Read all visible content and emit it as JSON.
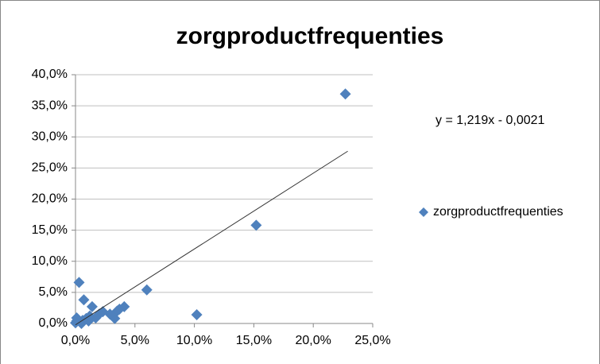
{
  "chart_data": {
    "type": "scatter",
    "title": "zorgproductfrequenties",
    "series": [
      {
        "name": "zorgproductfrequenties",
        "color": "#4f81bd",
        "x": [
          22.7,
          15.2,
          10.2,
          6.0,
          0.3,
          0.7,
          1.4,
          4.1,
          3.5,
          3.3,
          2.3,
          2.0,
          1.2,
          0.9,
          0.6,
          0.3,
          0.0,
          0.1,
          0.1,
          0.5,
          1.1,
          1.7,
          2.9,
          3.7
        ],
        "values": [
          36.9,
          15.8,
          1.4,
          5.4,
          6.6,
          3.8,
          2.7,
          2.7,
          2.0,
          0.8,
          1.9,
          1.5,
          1.2,
          0.8,
          0.5,
          0.4,
          0.1,
          0.4,
          0.9,
          0.0,
          0.4,
          0.9,
          1.5,
          2.3
        ]
      }
    ],
    "trendline": {
      "label": "y = 1,219x - 0,0021",
      "x": [
        0,
        22.9
      ],
      "y": [
        -0.21,
        27.7
      ],
      "color": "#333333"
    },
    "xlim": [
      0,
      25
    ],
    "xticks": [
      {
        "value": 0,
        "label": "0,0%"
      },
      {
        "value": 5,
        "label": "5,0%"
      },
      {
        "value": 10,
        "label": "10,0%"
      },
      {
        "value": 15,
        "label": "15,0%"
      },
      {
        "value": 20,
        "label": "20,0%"
      },
      {
        "value": 25,
        "label": "25,0%"
      }
    ],
    "ylim": [
      0,
      40
    ],
    "yticks": [
      {
        "value": 0,
        "label": "0,0%"
      },
      {
        "value": 5,
        "label": "5,0%"
      },
      {
        "value": 10,
        "label": "10,0%"
      },
      {
        "value": 15,
        "label": "15,0%"
      },
      {
        "value": 20,
        "label": "20,0%"
      },
      {
        "value": 25,
        "label": "25,0%"
      },
      {
        "value": 30,
        "label": "30,0%"
      },
      {
        "value": 35,
        "label": "35,0%"
      },
      {
        "value": 40,
        "label": "40,0%"
      }
    ],
    "grid": true,
    "legend": "right"
  }
}
